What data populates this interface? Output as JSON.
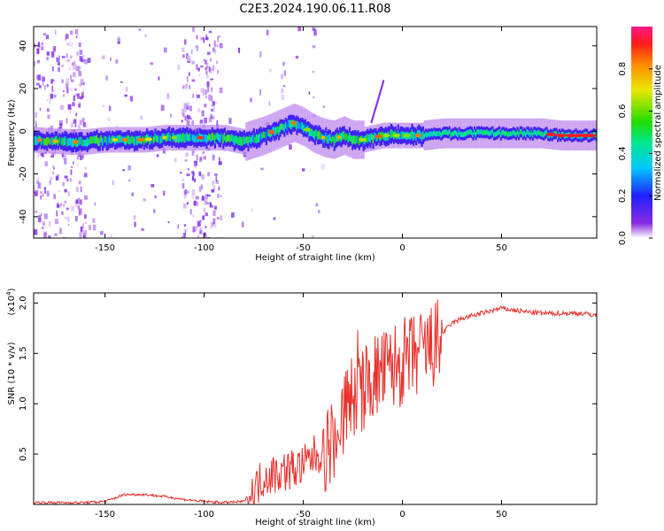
{
  "title": "C2E3.2024.190.06.11.R08",
  "chart_data": [
    {
      "type": "heatmap",
      "xlabel": "Height of straight line (km)",
      "ylabel": "Frequency (Hz)",
      "xlim": [
        -186,
        98
      ],
      "ylim": [
        -50,
        49
      ],
      "xticks": [
        -150,
        -100,
        -50,
        0,
        50
      ],
      "yticks": [
        -40,
        -20,
        0,
        20,
        40
      ],
      "colorbar": {
        "label": "Normalized spectral amplitude",
        "range": [
          0,
          1
        ],
        "ticks": [
          "0.0",
          "0.2",
          "0.4",
          "0.6",
          "0.8"
        ],
        "tick_values": [
          0,
          0.2,
          0.4,
          0.6,
          0.8
        ]
      },
      "ridge": {
        "x": [
          -186,
          -170,
          -160,
          -150,
          -140,
          -130,
          -120,
          -110,
          -100,
          -90,
          -80,
          -70,
          -60,
          -55,
          -50,
          -45,
          -40,
          -35,
          -30,
          -25,
          -20,
          -15,
          -10,
          -5,
          0,
          10,
          20,
          30,
          40,
          50,
          60,
          70,
          80,
          90,
          98
        ],
        "y": [
          -4,
          -5,
          -5,
          -4,
          -4,
          -4,
          -3,
          -3,
          -3,
          -3,
          -5,
          -2,
          2,
          4,
          2,
          -1,
          -3,
          -4,
          -2,
          -4,
          -4,
          -3,
          -2,
          -2,
          -2,
          -2,
          -1,
          -1,
          -1,
          -1,
          -1,
          -1,
          -2,
          -2,
          -2
        ]
      },
      "burst": {
        "x": [
          -16,
          -10
        ],
        "y": [
          5,
          24
        ]
      }
    },
    {
      "type": "line",
      "xlabel": "Height of straight line (km)",
      "ylabel": "SNR (10 * v/v)",
      "ylabel_exp": "(x10",
      "ylabel_exp_power": "4",
      "ylabel_exp_close": ")",
      "xlim": [
        -186,
        98
      ],
      "ylim": [
        0,
        2.1
      ],
      "xticks": [
        -150,
        -100,
        -50,
        0,
        50
      ],
      "yticks": [
        0.5,
        1.0,
        1.5,
        2.0
      ],
      "ytick_labels": [
        "0.5",
        "1.0",
        "1.5",
        "2.0"
      ],
      "color": "#e8312c",
      "series": [
        {
          "x": [
            -186,
            -170,
            -160,
            -150,
            -140,
            -130,
            -120,
            -110,
            -100,
            -90,
            -80,
            -75,
            -70,
            -60,
            -50,
            -45,
            -40,
            -35,
            -30,
            -25,
            -20,
            -15,
            -10,
            -5,
            0,
            5,
            10,
            15,
            20,
            25,
            30,
            40,
            50,
            60,
            70,
            80,
            90,
            98
          ],
          "y": [
            0.02,
            0.02,
            0.02,
            0.03,
            0.1,
            0.1,
            0.08,
            0.05,
            0.03,
            0.02,
            0.03,
            0.15,
            0.3,
            0.35,
            0.4,
            0.5,
            0.55,
            0.7,
            0.95,
            1.1,
            1.2,
            1.3,
            1.35,
            1.4,
            1.45,
            1.5,
            1.55,
            1.6,
            1.7,
            1.8,
            1.85,
            1.9,
            1.95,
            1.92,
            1.9,
            1.9,
            1.9,
            1.88
          ]
        }
      ]
    }
  ]
}
